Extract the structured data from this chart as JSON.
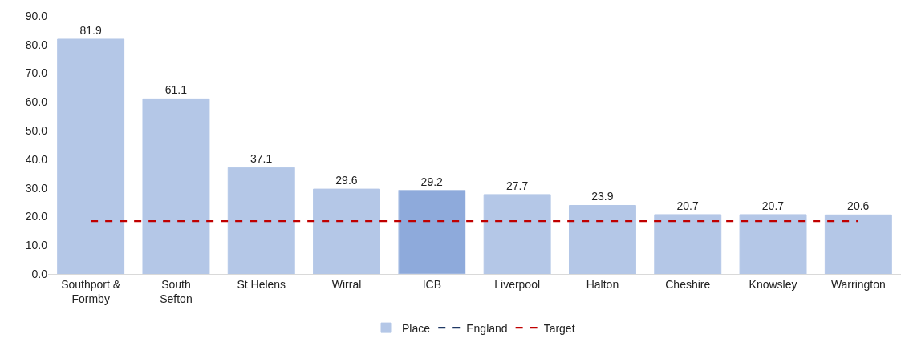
{
  "chart_data": {
    "type": "bar",
    "categories": [
      "Southport & Formby",
      "South Sefton",
      "St Helens",
      "Wirral",
      "ICB",
      "Liverpool",
      "Halton",
      "Cheshire",
      "Knowsley",
      "Warrington"
    ],
    "series": [
      {
        "name": "Place",
        "color": "#b4c7e7",
        "colors": [
          "#b4c7e7",
          "#b4c7e7",
          "#b4c7e7",
          "#b4c7e7",
          "#8eaadb",
          "#b4c7e7",
          "#b4c7e7",
          "#b4c7e7",
          "#b4c7e7",
          "#b4c7e7"
        ],
        "values": [
          81.9,
          61.1,
          37.1,
          29.6,
          29.2,
          27.7,
          23.9,
          20.7,
          20.7,
          20.6
        ],
        "data_labels": true
      },
      {
        "name": "England",
        "type": "line",
        "color": "#1f3864",
        "line_style": "dashed",
        "marker": "none",
        "values": [
          null,
          null,
          null,
          null,
          null,
          null,
          null,
          null,
          null,
          null
        ]
      },
      {
        "name": "Target",
        "type": "line",
        "color": "#c00000",
        "line_style": "dashed",
        "marker": "none",
        "values": [
          18.4,
          18.4,
          18.4,
          18.4,
          18.4,
          18.4,
          18.4,
          18.4,
          18.4,
          18.4
        ]
      }
    ],
    "ylim": [
      0,
      90
    ],
    "yticks": [
      {
        "value": 0,
        "label": "0.0"
      },
      {
        "value": 10,
        "label": "10.0"
      },
      {
        "value": 20,
        "label": "20.0"
      },
      {
        "value": 30,
        "label": "30.0"
      },
      {
        "value": 40,
        "label": "40.0"
      },
      {
        "value": 50,
        "label": "50.0"
      },
      {
        "value": 60,
        "label": "60.0"
      },
      {
        "value": 70,
        "label": "70.0"
      },
      {
        "value": 80,
        "label": "80.0"
      },
      {
        "value": 90,
        "label": "90.0"
      }
    ],
    "grid": false,
    "legend": "bottom"
  }
}
